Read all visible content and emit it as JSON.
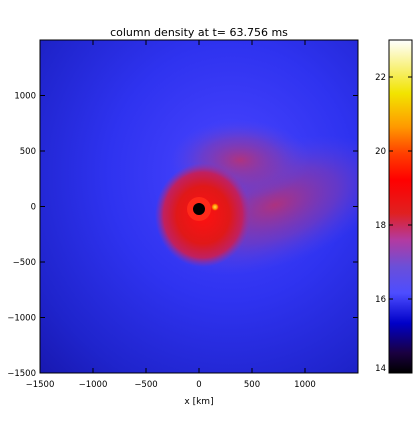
{
  "chart_data": {
    "type": "heatmap",
    "title": "column density at t= 63.756 ms",
    "xlabel": "x [km]",
    "ylabel": "",
    "xlim": [
      -1500,
      1500
    ],
    "ylim": [
      -1500,
      1500
    ],
    "x_ticks": [
      -1500,
      -1000,
      -500,
      0,
      500,
      1000
    ],
    "x_tick_labels": [
      "−1500",
      "−1000",
      "−500",
      "0",
      "500",
      "1000"
    ],
    "y_ticks": [
      -1500,
      -1000,
      -500,
      0,
      500,
      1000
    ],
    "y_tick_labels": [
      "−1500",
      "−1000",
      "−500",
      "0",
      "500",
      "1000"
    ],
    "colorbar": {
      "range": [
        14,
        23
      ],
      "ticks": [
        14,
        16,
        18,
        20,
        22
      ],
      "tick_labels": [
        "14",
        "16",
        "18",
        "20",
        "22"
      ],
      "colormap": [
        "#000000",
        "#1a0040",
        "#0000c8",
        "#4d4dff",
        "#6b4fd8",
        "#b33aa0",
        "#e02020",
        "#ff0000",
        "#ff4000",
        "#ff9a00",
        "#f2e400",
        "#ffffff"
      ]
    },
    "features": [
      {
        "name": "central core",
        "x": 0,
        "y": 0,
        "value": 23
      },
      {
        "name": "secondary bright spot",
        "x": 130,
        "y": 20,
        "value": 21
      },
      {
        "name": "inner dense torus",
        "x": 0,
        "y": 0,
        "radius": 320,
        "value": 18.5
      },
      {
        "name": "spiral arm",
        "x_range": [
          -500,
          1500
        ],
        "y_range": [
          -400,
          700
        ],
        "value": 17
      }
    ],
    "grid": false,
    "legend": "colorbar-right"
  }
}
